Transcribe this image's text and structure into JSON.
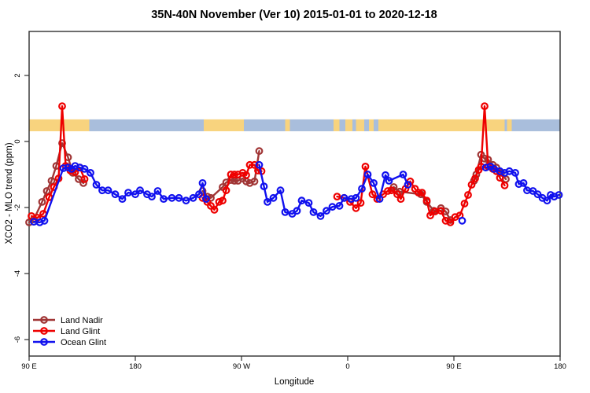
{
  "title": "35N-40N November (Ver 10)   2015-01-01 to 2020-12-18",
  "chart_data": {
    "type": "line",
    "title": "35N-40N November (Ver 10)   2015-01-01 to 2020-12-18",
    "xlabel": "Longitude",
    "ylabel": "XCO2 - MLO trend (ppm)",
    "x_axis": {
      "note": "axis spans 450 degrees wrapping the globe: 90E -> 180 -> 90W -> 0 -> 90E -> 180",
      "range": [
        90,
        540
      ],
      "ticks": [
        {
          "t": 90,
          "label": "90 E"
        },
        {
          "t": 180,
          "label": "180"
        },
        {
          "t": 270,
          "label": "90 W"
        },
        {
          "t": 360,
          "label": "0"
        },
        {
          "t": 450,
          "label": "90 E"
        },
        {
          "t": 540,
          "label": "180"
        }
      ]
    },
    "y_axis": {
      "range": [
        -6.5,
        3.33
      ],
      "ticks": [
        {
          "v": 2,
          "label": "2"
        },
        {
          "v": 0,
          "label": "0"
        },
        {
          "v": -2,
          "label": "-2"
        },
        {
          "v": -4,
          "label": "-4"
        },
        {
          "v": -6,
          "label": "-6"
        }
      ]
    },
    "grid": false,
    "legend_position": "bottom-left",
    "band": {
      "name": "land-ocean-strip",
      "y_center": 0.49,
      "y_half_width": 0.18,
      "colors": {
        "land": "#f8d37e",
        "ocean": "#a9bedc"
      },
      "segments": [
        {
          "from": 90,
          "to": 141,
          "type": "land"
        },
        {
          "from": 141,
          "to": 238,
          "type": "ocean"
        },
        {
          "from": 238,
          "to": 272,
          "type": "land"
        },
        {
          "from": 272,
          "to": 348,
          "type": "ocean"
        },
        {
          "from": 307,
          "to": 311,
          "type": "land"
        },
        {
          "from": 348,
          "to": 353,
          "type": "land"
        },
        {
          "from": 353,
          "to": 358,
          "type": "ocean"
        },
        {
          "from": 358,
          "to": 364,
          "type": "land"
        },
        {
          "from": 364,
          "to": 367,
          "type": "ocean"
        },
        {
          "from": 367,
          "to": 374,
          "type": "land"
        },
        {
          "from": 374,
          "to": 378,
          "type": "ocean"
        },
        {
          "from": 378,
          "to": 382,
          "type": "land"
        },
        {
          "from": 382,
          "to": 386,
          "type": "ocean"
        },
        {
          "from": 386,
          "to": 493,
          "type": "land"
        },
        {
          "from": 493,
          "to": 540,
          "type": "ocean"
        },
        {
          "from": 495,
          "to": 499,
          "type": "land"
        }
      ]
    },
    "series": [
      {
        "name": "Land Nadir",
        "key": "land-nadir",
        "color": "#a03535",
        "segments": [
          [
            [
              90,
              -2.45
            ],
            [
              94,
              -2.36
            ],
            [
              101,
              -1.83
            ],
            [
              105,
              -1.5
            ],
            [
              109,
              -1.19
            ],
            [
              113,
              -0.74
            ],
            [
              118,
              -0.05
            ],
            [
              123,
              -0.48
            ],
            [
              127,
              -0.95
            ],
            [
              132,
              -1.14
            ],
            [
              136,
              -1.26
            ]
          ],
          [
            [
              237,
              -1.5
            ],
            [
              241,
              -1.67
            ],
            [
              244,
              -1.71
            ],
            [
              254,
              -1.38
            ],
            [
              257,
              -1.24
            ],
            [
              261,
              -1.17
            ],
            [
              264,
              -1.19
            ],
            [
              267,
              -1.19
            ],
            [
              271,
              -1.12
            ],
            [
              274,
              -1.21
            ],
            [
              277,
              -1.26
            ],
            [
              281,
              -1.21
            ],
            [
              285,
              -0.29
            ]
          ],
          [
            [
              399,
              -1.38
            ],
            [
              404,
              -1.52
            ],
            [
              422,
              -1.6
            ],
            [
              427,
              -1.83
            ],
            [
              433,
              -2.1
            ],
            [
              439,
              -2.02
            ],
            [
              443,
              -2.12
            ],
            [
              447,
              -2.38
            ]
          ],
          [
            [
              467,
              -1.19
            ],
            [
              469,
              -1.0
            ],
            [
              473,
              -0.4
            ],
            [
              476,
              -0.52
            ],
            [
              479,
              -0.55
            ],
            [
              483,
              -0.71
            ],
            [
              486,
              -0.79
            ],
            [
              490,
              -0.95
            ],
            [
              494,
              -1.14
            ]
          ]
        ]
      },
      {
        "name": "Land Glint",
        "key": "land-glint",
        "color": "#ee0000",
        "segments": [
          [
            [
              92,
              -2.26
            ],
            [
              97,
              -2.31
            ],
            [
              102,
              -2.19
            ],
            [
              107,
              -1.69
            ],
            [
              111,
              -1.38
            ],
            [
              115,
              -1.12
            ],
            [
              118,
              1.07
            ],
            [
              121,
              -0.74
            ],
            [
              125,
              -0.88
            ],
            [
              129,
              -0.93
            ],
            [
              133,
              -0.79
            ],
            [
              137,
              -1.14
            ]
          ],
          [
            [
              237,
              -1.71
            ],
            [
              241,
              -1.83
            ],
            [
              244,
              -1.95
            ],
            [
              247,
              -2.07
            ],
            [
              251,
              -1.83
            ],
            [
              254,
              -1.79
            ],
            [
              257,
              -1.48
            ],
            [
              261,
              -1.0
            ],
            [
              264,
              -1.0
            ],
            [
              267,
              -1.0
            ],
            [
              271,
              -0.95
            ],
            [
              274,
              -1.02
            ],
            [
              277,
              -0.71
            ],
            [
              281,
              -0.71
            ],
            [
              284,
              -0.88
            ],
            [
              287,
              -0.9
            ]
          ],
          [
            [
              351,
              -1.67
            ],
            [
              357,
              -1.71
            ],
            [
              362,
              -1.83
            ],
            [
              367,
              -2.02
            ],
            [
              371,
              -1.86
            ],
            [
              375,
              -0.76
            ],
            [
              381,
              -1.6
            ],
            [
              385,
              -1.74
            ],
            [
              390,
              -1.6
            ],
            [
              394,
              -1.5
            ],
            [
              397,
              -1.48
            ],
            [
              402,
              -1.6
            ],
            [
              405,
              -1.74
            ],
            [
              409,
              -1.43
            ],
            [
              413,
              -1.21
            ],
            [
              417,
              -1.43
            ],
            [
              420,
              -1.55
            ],
            [
              423,
              -1.55
            ],
            [
              427,
              -1.79
            ],
            [
              430,
              -2.24
            ],
            [
              434,
              -2.12
            ],
            [
              439,
              -2.1
            ],
            [
              443,
              -2.4
            ],
            [
              447,
              -2.45
            ],
            [
              451,
              -2.29
            ],
            [
              455,
              -2.24
            ],
            [
              459,
              -1.88
            ],
            [
              462,
              -1.62
            ],
            [
              465,
              -1.31
            ],
            [
              468,
              -1.12
            ],
            [
              471,
              -0.86
            ],
            [
              473,
              -0.76
            ],
            [
              476,
              1.07
            ],
            [
              479,
              -0.76
            ],
            [
              483,
              -0.83
            ],
            [
              486,
              -0.9
            ],
            [
              489,
              -1.1
            ],
            [
              493,
              -1.33
            ]
          ]
        ]
      },
      {
        "name": "Ocean Glint",
        "key": "ocean-glint",
        "color": "#1111ee",
        "segments": [
          [
            [
              94,
              -2.43
            ],
            [
              99,
              -2.45
            ],
            [
              103,
              -2.4
            ],
            [
              119,
              -0.81
            ],
            [
              123,
              -0.79
            ],
            [
              126,
              -0.83
            ],
            [
              129,
              -0.74
            ],
            [
              133,
              -0.79
            ],
            [
              137,
              -0.83
            ],
            [
              142,
              -0.95
            ],
            [
              147,
              -1.31
            ],
            [
              152,
              -1.48
            ],
            [
              157,
              -1.48
            ],
            [
              163,
              -1.6
            ],
            [
              169,
              -1.74
            ],
            [
              174,
              -1.55
            ],
            [
              180,
              -1.6
            ],
            [
              184,
              -1.48
            ],
            [
              190,
              -1.6
            ],
            [
              194,
              -1.67
            ],
            [
              199,
              -1.5
            ],
            [
              204,
              -1.74
            ],
            [
              211,
              -1.71
            ],
            [
              217,
              -1.71
            ],
            [
              223,
              -1.79
            ],
            [
              229,
              -1.71
            ],
            [
              234,
              -1.6
            ],
            [
              237,
              -1.26
            ],
            [
              240,
              -1.74
            ]
          ],
          [
            [
              285,
              -0.71
            ],
            [
              289,
              -1.36
            ],
            [
              292,
              -1.83
            ],
            [
              297,
              -1.71
            ],
            [
              303,
              -1.48
            ],
            [
              307,
              -2.14
            ],
            [
              313,
              -2.19
            ],
            [
              317,
              -2.1
            ],
            [
              321,
              -1.79
            ],
            [
              327,
              -1.86
            ],
            [
              331,
              -2.14
            ],
            [
              337,
              -2.26
            ],
            [
              342,
              -2.1
            ],
            [
              347,
              -1.98
            ],
            [
              353,
              -1.95
            ],
            [
              357,
              -1.71
            ],
            [
              363,
              -1.74
            ],
            [
              367,
              -1.71
            ],
            [
              372,
              -1.43
            ],
            [
              377,
              -1.0
            ],
            [
              382,
              -1.26
            ],
            [
              387,
              -1.74
            ],
            [
              392,
              -1.02
            ],
            [
              395,
              -1.19
            ],
            [
              407,
              -1.0
            ],
            [
              411,
              -1.31
            ]
          ],
          [
            [
              457,
              -2.4
            ]
          ],
          [
            [
              477,
              -0.79
            ],
            [
              481,
              -0.76
            ],
            [
              484,
              -0.83
            ],
            [
              489,
              -0.9
            ],
            [
              493,
              -0.95
            ],
            [
              497,
              -0.9
            ],
            [
              502,
              -0.95
            ],
            [
              505,
              -1.29
            ],
            [
              509,
              -1.26
            ],
            [
              512,
              -1.48
            ],
            [
              517,
              -1.5
            ],
            [
              521,
              -1.6
            ],
            [
              525,
              -1.71
            ],
            [
              529,
              -1.79
            ],
            [
              532,
              -1.62
            ],
            [
              535,
              -1.67
            ],
            [
              539,
              -1.62
            ]
          ]
        ]
      }
    ]
  }
}
